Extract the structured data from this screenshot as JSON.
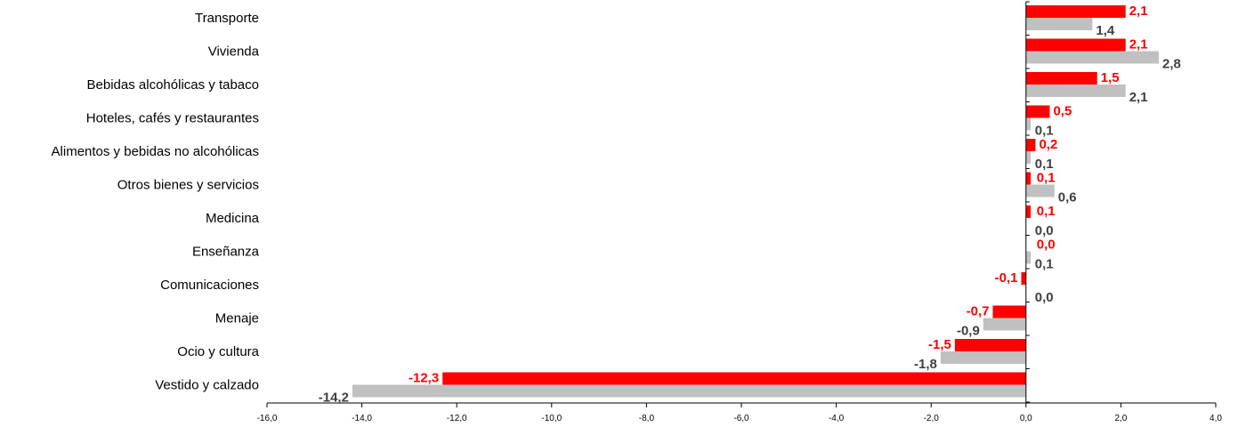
{
  "chart_data": {
    "type": "bar",
    "orientation": "horizontal",
    "categories": [
      "Transporte",
      "Vivienda",
      "Bebidas alcohólicas y tabaco",
      "Hoteles, cafés y restaurantes",
      "Alimentos y bebidas no alcohólicas",
      "Otros bienes y servicios",
      "Medicina",
      "Enseñanza",
      "Comunicaciones",
      "Menaje",
      "Ocio y cultura",
      "Vestido y calzado"
    ],
    "series": [
      {
        "color": "#ff0000",
        "label_color": "#ff0000",
        "values": [
          2.1,
          2.1,
          1.5,
          0.5,
          0.2,
          0.1,
          0.1,
          0.0,
          -0.1,
          -0.7,
          -1.5,
          -12.3
        ],
        "labels": [
          "2,1",
          "2,1",
          "1,5",
          "0,5",
          "0,2",
          "0,1",
          "0,1",
          "0,0",
          "-0,1",
          "-0,7",
          "-1,5",
          "-12,3"
        ]
      },
      {
        "color": "#c0c0c0",
        "label_color": "#404040",
        "values": [
          1.4,
          2.8,
          2.1,
          0.1,
          0.1,
          0.6,
          0.0,
          0.1,
          0.0,
          -0.9,
          -1.8,
          -14.2
        ],
        "labels": [
          "1,4",
          "2,8",
          "2,1",
          "0,1",
          "0,1",
          "0,6",
          "0,0",
          "0,1",
          "0,0",
          "-0,9",
          "-1,8",
          "-14,2"
        ]
      }
    ],
    "xlim": [
      -16,
      4
    ],
    "ticks": [
      -16,
      -14,
      -12,
      -10,
      -8,
      -6,
      -4,
      -2,
      0,
      2,
      4
    ],
    "tick_labels": [
      "-16,0",
      "-14,0",
      "-12,0",
      "-10,0",
      "-8,0",
      "-6,0",
      "-4,0",
      "-2,0",
      "0,0",
      "2,0",
      "4,0"
    ],
    "title": "",
    "xlabel": "",
    "ylabel": "",
    "grid": false,
    "legend": "none"
  }
}
